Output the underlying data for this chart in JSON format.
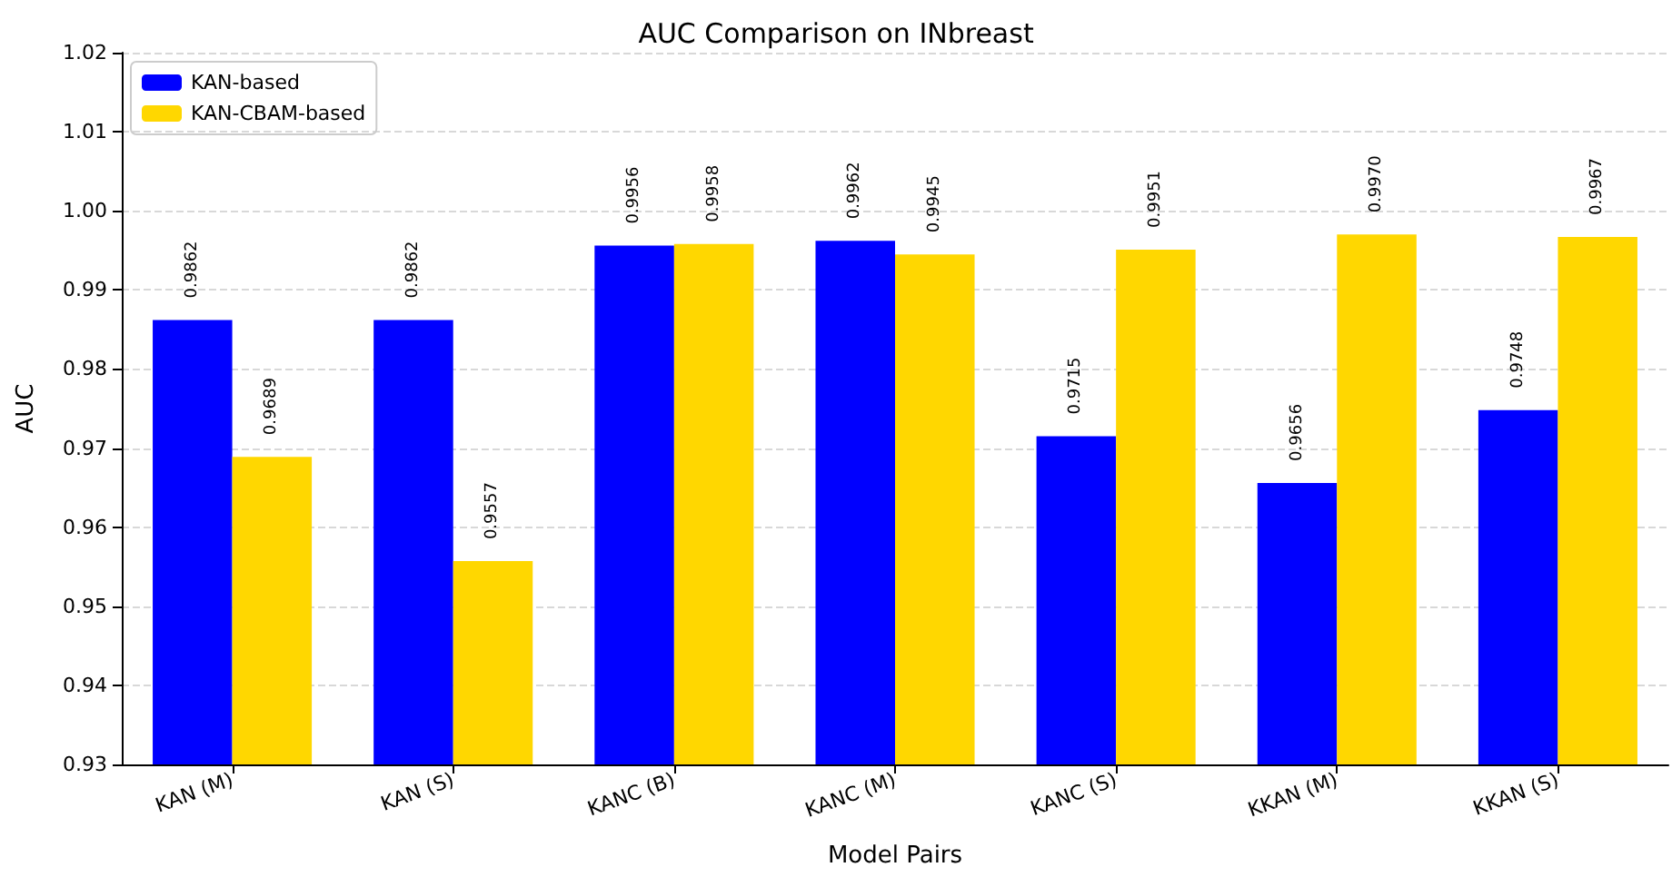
{
  "chart_data": {
    "type": "bar",
    "title": "AUC Comparison on INbreast",
    "xlabel": "Model Pairs",
    "ylabel": "AUC",
    "categories": [
      "KAN (M)",
      "KAN (S)",
      "KANC (B)",
      "KANC (M)",
      "KANC (S)",
      "KKAN (M)",
      "KKAN (S)"
    ],
    "series": [
      {
        "name": "KAN-based",
        "color": "#0000ff",
        "values": [
          0.9862,
          0.9862,
          0.9956,
          0.9962,
          0.9715,
          0.9656,
          0.9748
        ],
        "value_labels": [
          "0.9862",
          "0.9862",
          "0.9956",
          "0.9962",
          "0.9715",
          "0.9656",
          "0.9748"
        ]
      },
      {
        "name": "KAN-CBAM-based",
        "color": "#ffd700",
        "values": [
          0.9689,
          0.9557,
          0.9958,
          0.9945,
          0.9951,
          0.997,
          0.9967
        ],
        "value_labels": [
          "0.9689",
          "0.9557",
          "0.9958",
          "0.9945",
          "0.9951",
          "0.9970",
          "0.9967"
        ]
      }
    ],
    "ylim": [
      0.93,
      1.02
    ],
    "yticks": [
      0.93,
      0.94,
      0.95,
      0.96,
      0.97,
      0.98,
      0.99,
      {
        "value": 1,
        "label": "1.00"
      },
      1.01,
      1.02
    ],
    "grid": "y",
    "legend": "top left"
  }
}
